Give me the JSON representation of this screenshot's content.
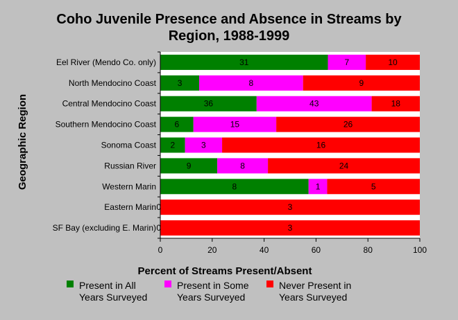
{
  "chart_data": {
    "type": "bar",
    "orientation": "horizontal",
    "stacked": true,
    "normalized_percent": true,
    "title_lines": [
      "Coho Juvenile Presence and Absence in Streams by",
      "Region, 1988-1999"
    ],
    "xlabel": "Percent of Streams Present/Absent",
    "ylabel": "Geographic Region",
    "xlim": [
      0,
      100
    ],
    "xticks": [
      "0",
      "20",
      "40",
      "60",
      "80",
      "100"
    ],
    "grid": false,
    "legend_position": "bottom",
    "categories": [
      "Eel River (Mendo Co. only)",
      "North Mendocino Coast",
      "Central Mendocino Coast",
      "Southern Mendocino Coast",
      "Sonoma Coast",
      "Russian River",
      "Western Marin",
      "Eastern Marin",
      "SF Bay (excluding E. Marin)"
    ],
    "series": [
      {
        "name": "Present in All Years Surveyed",
        "legend_lines": [
          "Present in All",
          "Years Surveyed"
        ],
        "color": "#008000",
        "counts": [
          31,
          3,
          36,
          6,
          2,
          9,
          8,
          0,
          0
        ]
      },
      {
        "name": "Present in Some Years Surveyed",
        "legend_lines": [
          "Present in Some",
          "Years Surveyed"
        ],
        "color": "#ff00ff",
        "counts": [
          7,
          8,
          43,
          15,
          3,
          8,
          1,
          0,
          0
        ]
      },
      {
        "name": "Never Present in Years Surveyed",
        "legend_lines": [
          "Never Present in",
          "Years Surveyed"
        ],
        "color": "#ff0000",
        "counts": [
          10,
          9,
          18,
          26,
          16,
          24,
          5,
          3,
          3
        ]
      }
    ]
  }
}
